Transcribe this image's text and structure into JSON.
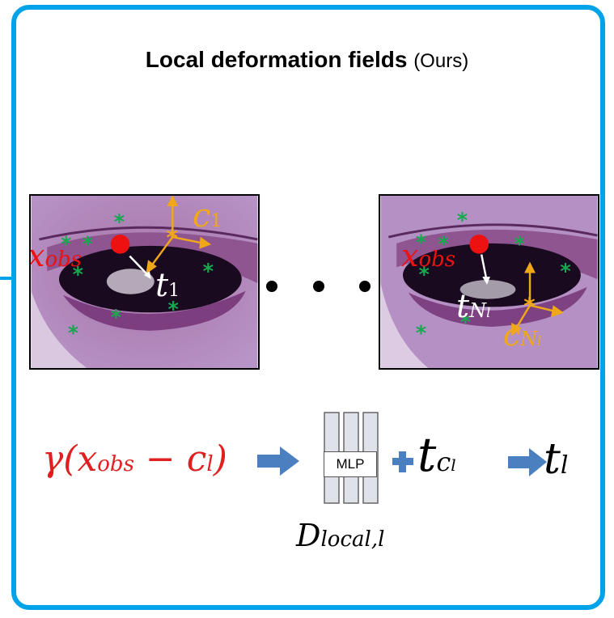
{
  "title": {
    "main": "Local deformation fields",
    "suffix": "(Ours)"
  },
  "panel_1": {
    "x_label": "x",
    "x_sub": "obs",
    "c_label": "c",
    "c_sub": "1",
    "t_label": "t",
    "t_sub": "1"
  },
  "panel_2": {
    "x_label": "x",
    "x_sub": "obs",
    "c_label": "c",
    "c_sub": "N",
    "c_subsub": "l",
    "t_label": "t",
    "t_sub": "N",
    "t_subsub": "l"
  },
  "formula": {
    "text": "γ(x",
    "sub": "obs",
    "rest": " − c",
    "rest_sub": "l",
    "close": ")"
  },
  "mlp": {
    "label": "MLP",
    "name_main": "D",
    "name_sub": "local,l"
  },
  "output": {
    "t_cl": "t",
    "t_cl_sub": "c",
    "t_cl_subsub": "l",
    "t_l": "t",
    "t_l_sub": "l"
  },
  "colors": {
    "frame": "#00a2e8",
    "formula": "#e02020",
    "keypoint": "#18a850",
    "center": "#f0a818",
    "arrow": "#4a7fc0"
  }
}
